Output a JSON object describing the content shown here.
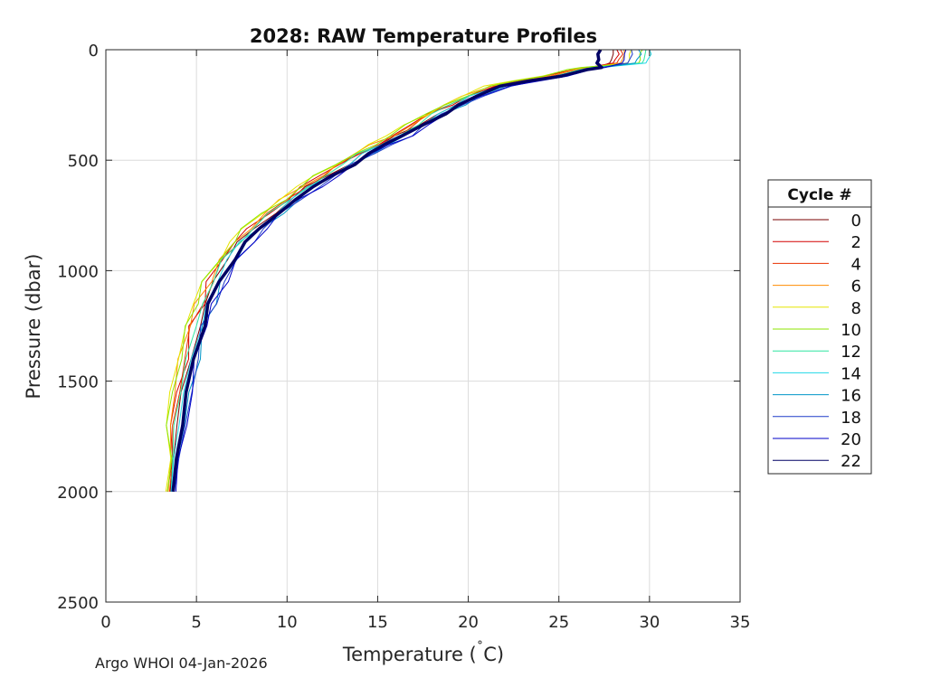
{
  "chart_data": {
    "type": "line",
    "title": "2028: RAW Temperature Profiles",
    "xlabel": "Temperature (˚C)",
    "xlabel_text": "Temperature (",
    "xlabel_degree": "˚",
    "xlabel_unit": "C)",
    "ylabel": "Pressure (dbar)",
    "xlim": [
      0,
      35
    ],
    "ylim": [
      0,
      2500
    ],
    "y_reversed": true,
    "grid": true,
    "xticks": [
      "0",
      "5",
      "10",
      "15",
      "20",
      "25",
      "30",
      "35"
    ],
    "yticks": [
      "0",
      "500",
      "1000",
      "1500",
      "2000",
      "2500"
    ],
    "legend": {
      "title": "Cycle #",
      "placement": "right",
      "entries": [
        {
          "label": "0",
          "color": "#7a0000"
        },
        {
          "label": "2",
          "color": "#d40000"
        },
        {
          "label": "4",
          "color": "#e83000"
        },
        {
          "label": "6",
          "color": "#ff8c00"
        },
        {
          "label": "8",
          "color": "#e6e600"
        },
        {
          "label": "10",
          "color": "#8ce600"
        },
        {
          "label": "12",
          "color": "#2ee6a0"
        },
        {
          "label": "14",
          "color": "#20d8e6"
        },
        {
          "label": "16",
          "color": "#0096c8"
        },
        {
          "label": "18",
          "color": "#1e3cc8"
        },
        {
          "label": "20",
          "color": "#0000c8"
        },
        {
          "label": "22",
          "color": "#000064"
        }
      ]
    },
    "base_profile": [
      [
        27.3,
        0
      ],
      [
        27.3,
        60
      ],
      [
        27.3,
        80
      ],
      [
        26.5,
        90
      ],
      [
        25.0,
        120
      ],
      [
        23.5,
        140
      ],
      [
        22.0,
        165
      ],
      [
        20.5,
        210
      ],
      [
        19.5,
        250
      ],
      [
        18.5,
        290
      ],
      [
        17.5,
        340
      ],
      [
        16.5,
        390
      ],
      [
        15.5,
        430
      ],
      [
        14.5,
        470
      ],
      [
        13.5,
        520
      ],
      [
        12.5,
        570
      ],
      [
        11.5,
        620
      ],
      [
        10.5,
        680
      ],
      [
        9.5,
        740
      ],
      [
        8.5,
        810
      ],
      [
        7.8,
        870
      ],
      [
        7.0,
        950
      ],
      [
        6.3,
        1050
      ],
      [
        5.8,
        1150
      ],
      [
        5.3,
        1250
      ],
      [
        4.9,
        1400
      ],
      [
        4.5,
        1550
      ],
      [
        4.2,
        1700
      ],
      [
        3.9,
        1850
      ],
      [
        3.7,
        2000
      ]
    ],
    "series": [
      {
        "name": "0",
        "color": "#7a0000",
        "surface_temp": 28.0,
        "offset": -0.3
      },
      {
        "name": "2",
        "color": "#d40000",
        "surface_temp": 28.2,
        "offset": -0.6
      },
      {
        "name": "4",
        "color": "#e83000",
        "surface_temp": 28.4,
        "offset": -0.5
      },
      {
        "name": "6",
        "color": "#ff8c00",
        "surface_temp": 28.6,
        "offset": -0.7
      },
      {
        "name": "8",
        "color": "#e6e600",
        "surface_temp": 29.0,
        "offset": -0.9
      },
      {
        "name": "10",
        "color": "#8ce600",
        "surface_temp": 29.6,
        "offset": -0.8
      },
      {
        "name": "12",
        "color": "#2ee6a0",
        "surface_temp": 29.8,
        "offset": -0.4
      },
      {
        "name": "14",
        "color": "#20d8e6",
        "surface_temp": 30.0,
        "offset": -0.2
      },
      {
        "name": "16",
        "color": "#0096c8",
        "surface_temp": 29.4,
        "offset": 0.1
      },
      {
        "name": "18",
        "color": "#1e3cc8",
        "surface_temp": 29.0,
        "offset": 0.2
      },
      {
        "name": "20",
        "color": "#0000c8",
        "surface_temp": 28.7,
        "offset": 0.25
      },
      {
        "name": "22",
        "color": "#000064",
        "surface_temp": 27.3,
        "offset": 0.0
      }
    ]
  },
  "footer": "Argo WHOI 04-Jan-2026"
}
